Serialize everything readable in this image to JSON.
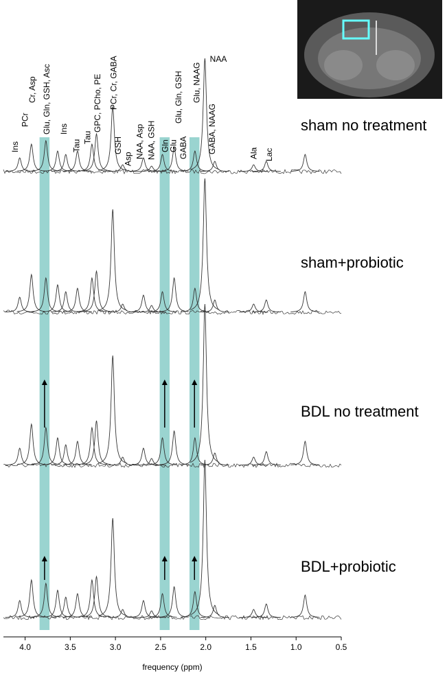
{
  "chart_data": {
    "type": "spectrum",
    "xlabel": "frequency (ppm)",
    "xlim": [
      4.24,
      0.5
    ],
    "xticks": [
      {
        "value": 4,
        "label": "4.0"
      },
      3.5,
      {
        "value": 3,
        "label": "3.0"
      },
      2.5,
      {
        "value": 2,
        "label": "2.0"
      },
      1.5,
      {
        "value": 1,
        "label": "1.0"
      },
      0.5
    ],
    "highlights": [
      [
        3.84,
        3.73
      ],
      [
        2.51,
        2.4
      ],
      [
        2.18,
        2.07
      ]
    ],
    "series": [
      {
        "name": "sham no treatment",
        "color": "#333333",
        "increase_arrows": false,
        "x": [
          4.06,
          3.93,
          3.77,
          3.64,
          3.55,
          3.42,
          3.26,
          3.21,
          3.03,
          2.92,
          2.69,
          2.6,
          2.48,
          2.35,
          2.12,
          2.01,
          1.9,
          1.47,
          1.33,
          0.9
        ],
        "values": [
          20,
          40,
          45,
          30,
          25,
          30,
          40,
          55,
          95,
          10,
          20,
          8,
          25,
          35,
          30,
          165,
          15,
          10,
          15,
          25
        ]
      },
      {
        "name": "sham+probiotic",
        "color": "#333333",
        "increase_arrows": false,
        "x": [
          4.06,
          3.93,
          3.77,
          3.64,
          3.55,
          3.42,
          3.26,
          3.21,
          3.03,
          2.92,
          2.69,
          2.6,
          2.48,
          2.35,
          2.12,
          2.01,
          1.9,
          1.47,
          1.33,
          0.9
        ],
        "values": [
          22,
          55,
          50,
          40,
          30,
          35,
          50,
          60,
          150,
          12,
          25,
          10,
          30,
          50,
          35,
          195,
          18,
          12,
          18,
          30
        ]
      },
      {
        "name": "BDL no treatment",
        "color": "#333333",
        "increase_arrows": true,
        "x": [
          4.06,
          3.93,
          3.77,
          3.64,
          3.55,
          3.42,
          3.26,
          3.21,
          3.03,
          2.92,
          2.69,
          2.6,
          2.48,
          2.35,
          2.12,
          2.01,
          1.9,
          1.47,
          1.33,
          0.9
        ],
        "values": [
          25,
          60,
          55,
          40,
          30,
          35,
          55,
          65,
          160,
          12,
          25,
          10,
          40,
          50,
          40,
          235,
          18,
          12,
          20,
          35
        ]
      },
      {
        "name": "BDL+probiotic",
        "color": "#333333",
        "increase_arrows": true,
        "x": [
          4.06,
          3.93,
          3.77,
          3.64,
          3.55,
          3.42,
          3.26,
          3.21,
          3.03,
          2.92,
          2.69,
          2.6,
          2.48,
          2.35,
          2.12,
          2.01,
          1.9,
          1.47,
          1.33,
          0.9
        ],
        "values": [
          25,
          55,
          50,
          40,
          30,
          35,
          55,
          60,
          145,
          12,
          25,
          10,
          35,
          45,
          38,
          230,
          18,
          12,
          20,
          33
        ]
      }
    ],
    "annotations": [
      {
        "text": "Ins",
        "x": 4.11
      },
      {
        "text": "PCr",
        "x": 4.0
      },
      {
        "text": "Cr, Asp",
        "x": 3.92
      },
      {
        "text": "Glu, Gln, GSH, Asc",
        "x": 3.76
      },
      {
        "text": "Ins",
        "x": 3.57
      },
      {
        "text": "Tau",
        "x": 3.43
      },
      {
        "text": "Tau",
        "x": 3.31
      },
      {
        "text": "GPC, PCho, PE",
        "x": 3.2
      },
      {
        "text": "PCr, Cr, GABA",
        "x": 3.02
      },
      {
        "text": "GSH",
        "x": 2.97
      },
      {
        "text": "Asp",
        "x": 2.86
      },
      {
        "text": "NAA, Asp",
        "x": 2.73
      },
      {
        "text": "NAA, GSH",
        "x": 2.6
      },
      {
        "text": "Gln",
        "x": 2.45
      },
      {
        "text": "Glu",
        "x": 2.36
      },
      {
        "text": "Glu, Gln, GSH",
        "x": 2.3
      },
      {
        "text": "GABA",
        "x": 2.25
      },
      {
        "text": "Glu, NAAG",
        "x": 2.1
      },
      {
        "text": "NAA",
        "x": 2.0
      },
      {
        "text": "GABA, NAAG",
        "x": 1.93
      },
      {
        "text": "Ala",
        "x": 1.47
      },
      {
        "text": "Lac",
        "x": 1.3
      }
    ]
  }
}
